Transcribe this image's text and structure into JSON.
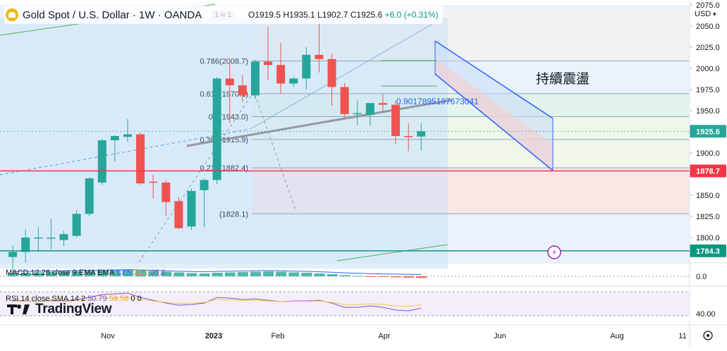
{
  "symbol": {
    "title": "Gold Spot / U.S. Dollar · 1W · OANDA",
    "badge": "1 ∞ 1",
    "ohlc_open": "O1919.5",
    "ohlc_high": "H1935.1",
    "ohlc_low": "L1902.7",
    "ohlc_close": "C1925.6",
    "change": "+6.0 (+0.31%)"
  },
  "currency": "USD",
  "annotation_text": "持續震盪",
  "time_axis": [
    "Nov",
    "2023",
    "Feb",
    "Apr",
    "Jun",
    "Aug",
    "11"
  ],
  "colors": {
    "up": "#26a69a",
    "down": "#ef5350",
    "channel": "#2962ff"
  },
  "chart_data": {
    "type": "candlestick",
    "price_axis": {
      "ylim": [
        1780,
        2075
      ],
      "ticks": [
        2075.0,
        2050.0,
        2025.0,
        2000.0,
        1975.0,
        1950.0,
        1925.0,
        1900.0,
        1875.0,
        1850.0,
        1825.0,
        1800.0
      ]
    },
    "candles": [
      {
        "o": 1777,
        "h": 1790,
        "l": 1758,
        "c": 1783
      },
      {
        "o": 1783,
        "h": 1810,
        "l": 1770,
        "c": 1800
      },
      {
        "o": 1800,
        "h": 1812,
        "l": 1784,
        "c": 1800
      },
      {
        "o": 1800,
        "h": 1822,
        "l": 1786,
        "c": 1800
      },
      {
        "o": 1797,
        "h": 1808,
        "l": 1790,
        "c": 1804
      },
      {
        "o": 1802,
        "h": 1832,
        "l": 1800,
        "c": 1828
      },
      {
        "o": 1828,
        "h": 1871,
        "l": 1825,
        "c": 1870
      },
      {
        "o": 1865,
        "h": 1917,
        "l": 1862,
        "c": 1915
      },
      {
        "o": 1915,
        "h": 1921,
        "l": 1890,
        "c": 1920
      },
      {
        "o": 1919,
        "h": 1940,
        "l": 1913,
        "c": 1922
      },
      {
        "o": 1922,
        "h": 1924,
        "l": 1862,
        "c": 1864
      },
      {
        "o": 1866,
        "h": 1874,
        "l": 1846,
        "c": 1865
      },
      {
        "o": 1865,
        "h": 1868,
        "l": 1826,
        "c": 1842
      },
      {
        "o": 1843,
        "h": 1848,
        "l": 1810,
        "c": 1811
      },
      {
        "o": 1813,
        "h": 1858,
        "l": 1809,
        "c": 1855
      },
      {
        "o": 1856,
        "h": 1870,
        "l": 1812,
        "c": 1868
      },
      {
        "o": 1868,
        "h": 1990,
        "l": 1863,
        "c": 1988
      },
      {
        "o": 1988,
        "h": 2010,
        "l": 1935,
        "c": 1980
      },
      {
        "o": 1980,
        "h": 1992,
        "l": 1960,
        "c": 1968
      },
      {
        "o": 1968,
        "h": 2010,
        "l": 1964,
        "c": 2008
      },
      {
        "o": 2008,
        "h": 2049,
        "l": 1986,
        "c": 2004
      },
      {
        "o": 2004,
        "h": 2030,
        "l": 1970,
        "c": 1982
      },
      {
        "o": 1982,
        "h": 1990,
        "l": 1978,
        "c": 1988
      },
      {
        "o": 1988,
        "h": 2025,
        "l": 1975,
        "c": 2016
      },
      {
        "o": 2016,
        "h": 2055,
        "l": 1995,
        "c": 2011
      },
      {
        "o": 2011,
        "h": 2017,
        "l": 1956,
        "c": 1978
      },
      {
        "o": 1978,
        "h": 1983,
        "l": 1942,
        "c": 1946
      },
      {
        "o": 1946,
        "h": 1962,
        "l": 1933,
        "c": 1947
      },
      {
        "o": 1945,
        "h": 1958,
        "l": 1932,
        "c": 1959
      },
      {
        "o": 1959,
        "h": 1970,
        "l": 1948,
        "c": 1957
      },
      {
        "o": 1957,
        "h": 1962,
        "l": 1910,
        "c": 1920
      },
      {
        "o": 1920,
        "h": 1935,
        "l": 1902,
        "c": 1919
      },
      {
        "o": 1919.5,
        "h": 1935.1,
        "l": 1902.7,
        "c": 1925.6
      }
    ],
    "fib_levels": [
      {
        "label": "0.786(2008.7)",
        "price": 2008.7
      },
      {
        "label": "0.618(1970.1)",
        "price": 1970.1
      },
      {
        "label": "0.5(1943.0)",
        "price": 1943.0
      },
      {
        "label": "0.382(1915.9)",
        "price": 1915.9
      },
      {
        "label": "0.236(1882.4)",
        "price": 1882.4
      },
      {
        "label": "(1828.1)",
        "price": 1828.1
      }
    ],
    "channel_label": "0.9017895197673041",
    "price_badges": [
      {
        "label": "1925.6",
        "price": 1925.6,
        "color": "#26a69a",
        "line": false
      },
      {
        "label": "1878.7",
        "price": 1878.7,
        "color": "#f23645",
        "line": true
      },
      {
        "label": "1784.3",
        "price": 1784.3,
        "color": "#089981",
        "line": true
      }
    ],
    "macd": {
      "label": "MACD 12 26 close 9 EMA EMA",
      "values": [
        "13.5",
        "22.1",
        "35.6"
      ],
      "axis_tick": "0.0",
      "histogram": [
        9,
        10,
        11,
        12,
        13,
        14,
        15,
        16,
        17,
        18,
        17,
        15,
        13,
        11,
        9,
        8,
        10,
        11,
        12,
        13,
        14,
        13,
        11,
        10,
        8,
        6,
        3,
        1,
        -1,
        -2,
        -3,
        -4,
        -5
      ]
    },
    "rsi": {
      "label": "RSI 14 close SMA 14 2",
      "values": [
        "50.79",
        "59.58",
        "0",
        "0"
      ],
      "axis_tick": "40.00",
      "line": [
        62,
        61,
        60,
        62,
        61,
        63,
        66,
        70,
        71,
        72,
        66,
        62,
        58,
        55,
        56,
        58,
        66,
        65,
        63,
        64,
        62,
        60,
        61,
        61,
        62,
        58,
        52,
        52,
        54,
        52,
        48,
        47,
        50.8
      ]
    }
  }
}
